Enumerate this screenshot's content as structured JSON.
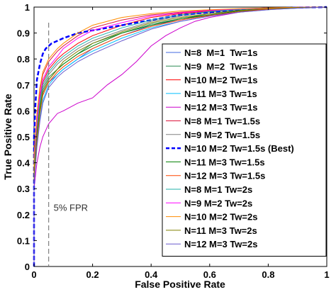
{
  "chart_data": {
    "type": "line",
    "title": "",
    "xlabel": "False Positive Rate",
    "ylabel": "True Positive Rate",
    "xlim": [
      0,
      1
    ],
    "ylim": [
      0,
      1
    ],
    "xticks": [
      0,
      0.2,
      0.4,
      0.6,
      0.8,
      1
    ],
    "xtick_labels": [
      "0",
      "0.2",
      "0.4",
      "0.6",
      "0.8",
      "1"
    ],
    "yticks": [
      0,
      0.1,
      0.2,
      0.3,
      0.4,
      0.5,
      0.6,
      0.7,
      0.8,
      0.9,
      1
    ],
    "ytick_labels": [
      "0",
      "0.1",
      "0.2",
      "0.3",
      "0.4",
      "0.5",
      "0.6",
      "0.7",
      "0.8",
      "0.9",
      "1"
    ],
    "grid": false,
    "legend_position": "right",
    "annotations": [
      {
        "text": "5% FPR",
        "type": "vertical-line",
        "x": 0.05,
        "style": "dashed",
        "color": "#808080"
      }
    ],
    "series": [
      {
        "name": "N=8  M=1  Tw=1s",
        "color": "#4169e1",
        "style": "solid",
        "x": [
          0,
          0,
          0.01,
          0.02,
          0.03,
          0.05,
          0.08,
          0.1,
          0.15,
          0.2,
          0.3,
          0.4,
          0.5,
          0.6,
          0.7,
          0.8,
          0.9,
          1
        ],
        "y": [
          0,
          0.35,
          0.5,
          0.6,
          0.66,
          0.71,
          0.74,
          0.76,
          0.8,
          0.84,
          0.89,
          0.93,
          0.95,
          0.97,
          0.985,
          0.993,
          0.997,
          1
        ]
      },
      {
        "name": "N=9  M=2  Tw=1s",
        "color": "#2e8b57",
        "style": "solid",
        "x": [
          0,
          0,
          0.01,
          0.02,
          0.03,
          0.05,
          0.08,
          0.1,
          0.15,
          0.2,
          0.3,
          0.4,
          0.5,
          0.6,
          0.7,
          0.8,
          0.9,
          1
        ],
        "y": [
          0,
          0.38,
          0.52,
          0.62,
          0.68,
          0.73,
          0.76,
          0.78,
          0.82,
          0.86,
          0.9,
          0.935,
          0.955,
          0.975,
          0.988,
          0.994,
          0.998,
          1
        ]
      },
      {
        "name": "N=10 M=2 Tw=1s",
        "color": "#ff0000",
        "style": "solid",
        "x": [
          0,
          0,
          0.01,
          0.02,
          0.03,
          0.05,
          0.08,
          0.1,
          0.15,
          0.2,
          0.3,
          0.4,
          0.5,
          0.6,
          0.7,
          0.8,
          0.9,
          1
        ],
        "y": [
          0,
          0.4,
          0.55,
          0.65,
          0.71,
          0.76,
          0.8,
          0.82,
          0.86,
          0.89,
          0.93,
          0.96,
          0.975,
          0.985,
          0.992,
          0.996,
          0.998,
          1
        ]
      },
      {
        "name": "N=11 M=3 Tw=1s",
        "color": "#00bfff",
        "style": "solid",
        "x": [
          0,
          0,
          0.01,
          0.02,
          0.03,
          0.05,
          0.08,
          0.1,
          0.15,
          0.2,
          0.3,
          0.4,
          0.5,
          0.6,
          0.7,
          0.8,
          0.9,
          1
        ],
        "y": [
          0,
          0.33,
          0.47,
          0.57,
          0.64,
          0.7,
          0.74,
          0.76,
          0.8,
          0.83,
          0.88,
          0.92,
          0.945,
          0.965,
          0.98,
          0.99,
          0.996,
          1
        ]
      },
      {
        "name": "N=12 M=3 Tw=1s",
        "color": "#cc00cc",
        "style": "solid",
        "x": [
          0,
          0,
          0.01,
          0.02,
          0.03,
          0.05,
          0.08,
          0.1,
          0.15,
          0.2,
          0.25,
          0.3,
          0.35,
          0.4,
          0.45,
          0.5,
          0.55,
          0.6,
          0.7,
          0.8,
          0.9,
          1
        ],
        "y": [
          0,
          0.3,
          0.4,
          0.46,
          0.5,
          0.55,
          0.59,
          0.6,
          0.63,
          0.65,
          0.7,
          0.74,
          0.79,
          0.85,
          0.89,
          0.92,
          0.945,
          0.96,
          0.98,
          0.992,
          0.997,
          1
        ]
      },
      {
        "name": "N=8 M=1 Tw=1.5s",
        "color": "#dc143c",
        "style": "solid",
        "x": [
          0,
          0,
          0.01,
          0.02,
          0.03,
          0.05,
          0.08,
          0.1,
          0.15,
          0.2,
          0.3,
          0.4,
          0.5,
          0.6,
          0.7,
          0.8,
          0.9,
          1
        ],
        "y": [
          0,
          0.42,
          0.58,
          0.68,
          0.74,
          0.79,
          0.83,
          0.85,
          0.89,
          0.92,
          0.95,
          0.97,
          0.98,
          0.988,
          0.993,
          0.997,
          0.999,
          1
        ]
      },
      {
        "name": "N=9 M=2 Tw=1.5s",
        "color": "#808080",
        "style": "solid",
        "x": [
          0,
          0,
          0.01,
          0.02,
          0.03,
          0.05,
          0.08,
          0.1,
          0.15,
          0.2,
          0.3,
          0.4,
          0.5,
          0.6,
          0.7,
          0.8,
          0.9,
          1
        ],
        "y": [
          0,
          0.37,
          0.53,
          0.63,
          0.69,
          0.74,
          0.78,
          0.8,
          0.84,
          0.87,
          0.91,
          0.945,
          0.965,
          0.98,
          0.99,
          0.995,
          0.998,
          1
        ]
      },
      {
        "name": "N=10 M=2 Tw=1.5s (Best)",
        "color": "#0000ff",
        "style": "dashed",
        "x": [
          0,
          0,
          0.005,
          0.01,
          0.02,
          0.03,
          0.04,
          0.05,
          0.06,
          0.08,
          0.1,
          0.15,
          0.2,
          0.25,
          0.3,
          0.4,
          0.5,
          0.6,
          0.7,
          0.8,
          0.9,
          1
        ],
        "y": [
          0,
          0.5,
          0.63,
          0.72,
          0.78,
          0.82,
          0.84,
          0.85,
          0.86,
          0.87,
          0.88,
          0.9,
          0.91,
          0.92,
          0.93,
          0.95,
          0.97,
          0.98,
          0.99,
          0.995,
          0.998,
          1
        ]
      },
      {
        "name": "N=11 M=3 Tw=1.5s",
        "color": "#008000",
        "style": "solid",
        "x": [
          0,
          0,
          0.01,
          0.02,
          0.03,
          0.05,
          0.08,
          0.1,
          0.15,
          0.2,
          0.3,
          0.4,
          0.5,
          0.6,
          0.7,
          0.8,
          0.9,
          1
        ],
        "y": [
          0,
          0.36,
          0.51,
          0.61,
          0.67,
          0.72,
          0.76,
          0.78,
          0.82,
          0.85,
          0.9,
          0.93,
          0.955,
          0.97,
          0.985,
          0.993,
          0.997,
          1
        ]
      },
      {
        "name": "N=12 M=3 Tw=1.5s",
        "color": "#ff4500",
        "style": "solid",
        "x": [
          0,
          0,
          0.01,
          0.02,
          0.03,
          0.05,
          0.08,
          0.1,
          0.15,
          0.2,
          0.3,
          0.4,
          0.5,
          0.6,
          0.7,
          0.8,
          0.9,
          1
        ],
        "y": [
          0,
          0.34,
          0.49,
          0.59,
          0.66,
          0.71,
          0.75,
          0.77,
          0.81,
          0.84,
          0.89,
          0.925,
          0.95,
          0.968,
          0.982,
          0.992,
          0.997,
          1
        ]
      },
      {
        "name": "N=8 M=1 Tw=2s",
        "color": "#20b2aa",
        "style": "solid",
        "x": [
          0,
          0,
          0.01,
          0.02,
          0.03,
          0.05,
          0.08,
          0.1,
          0.15,
          0.2,
          0.3,
          0.4,
          0.5,
          0.6,
          0.7,
          0.8,
          0.9,
          1
        ],
        "y": [
          0,
          0.39,
          0.55,
          0.64,
          0.7,
          0.75,
          0.79,
          0.81,
          0.85,
          0.88,
          0.92,
          0.95,
          0.97,
          0.983,
          0.991,
          0.995,
          0.998,
          1
        ]
      },
      {
        "name": "N=9 M=2 Tw=2s",
        "color": "#ff00ff",
        "style": "solid",
        "x": [
          0,
          0,
          0.01,
          0.02,
          0.03,
          0.05,
          0.08,
          0.1,
          0.15,
          0.2,
          0.3,
          0.4,
          0.5,
          0.6,
          0.7,
          0.8,
          0.9,
          1
        ],
        "y": [
          0,
          0.41,
          0.56,
          0.66,
          0.72,
          0.77,
          0.81,
          0.84,
          0.88,
          0.91,
          0.94,
          0.965,
          0.978,
          0.987,
          0.993,
          0.996,
          0.999,
          1
        ]
      },
      {
        "name": "N=10 M=2 Tw=2s",
        "color": "#ff8c00",
        "style": "solid",
        "x": [
          0,
          0,
          0.01,
          0.02,
          0.03,
          0.05,
          0.08,
          0.1,
          0.15,
          0.2,
          0.3,
          0.4,
          0.5,
          0.6,
          0.7,
          0.8,
          0.9,
          1
        ],
        "y": [
          0,
          0.43,
          0.59,
          0.69,
          0.75,
          0.8,
          0.84,
          0.86,
          0.9,
          0.93,
          0.96,
          0.975,
          0.985,
          0.99,
          0.994,
          0.997,
          0.999,
          1
        ]
      },
      {
        "name": "N=11 M=3 Tw=2s",
        "color": "#808000",
        "style": "solid",
        "x": [
          0,
          0,
          0.01,
          0.02,
          0.03,
          0.05,
          0.08,
          0.1,
          0.15,
          0.2,
          0.3,
          0.4,
          0.5,
          0.6,
          0.7,
          0.8,
          0.9,
          1
        ],
        "y": [
          0,
          0.35,
          0.5,
          0.6,
          0.67,
          0.72,
          0.76,
          0.79,
          0.83,
          0.86,
          0.905,
          0.94,
          0.96,
          0.975,
          0.987,
          0.994,
          0.998,
          1
        ]
      },
      {
        "name": "N=12 M=3 Tw=2s",
        "color": "#6a5acd",
        "style": "solid",
        "x": [
          0,
          0,
          0.01,
          0.02,
          0.03,
          0.05,
          0.08,
          0.1,
          0.15,
          0.2,
          0.3,
          0.4,
          0.5,
          0.6,
          0.7,
          0.8,
          0.9,
          1
        ],
        "y": [
          0,
          0.32,
          0.46,
          0.56,
          0.63,
          0.69,
          0.73,
          0.75,
          0.79,
          0.82,
          0.87,
          0.915,
          0.945,
          0.965,
          0.98,
          0.99,
          0.996,
          1
        ]
      }
    ]
  }
}
